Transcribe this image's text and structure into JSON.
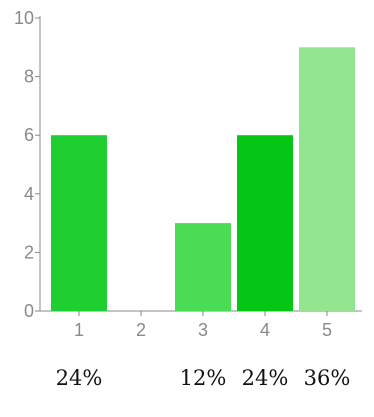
{
  "chart_data": {
    "type": "bar",
    "categories": [
      "1",
      "2",
      "3",
      "4",
      "5"
    ],
    "values": [
      6,
      0,
      3,
      6,
      9
    ],
    "percent_labels": [
      "24%",
      "",
      "12%",
      "24%",
      "36%"
    ],
    "colors": [
      "#1ecf2f",
      "#1ecf2f",
      "#4bdc56",
      "#05c515",
      "#93e590"
    ],
    "ylim": [
      0,
      10
    ],
    "yticks": [
      0,
      2,
      4,
      6,
      8,
      10
    ],
    "ytick_labels": [
      "0",
      "2",
      "4",
      "6",
      "8",
      "10"
    ],
    "xtick_labels": [
      "1",
      "2",
      "3",
      "4",
      "5"
    ],
    "axis_color": "#8a8a8a",
    "grid": false,
    "title": "",
    "xlabel": "",
    "ylabel": ""
  }
}
